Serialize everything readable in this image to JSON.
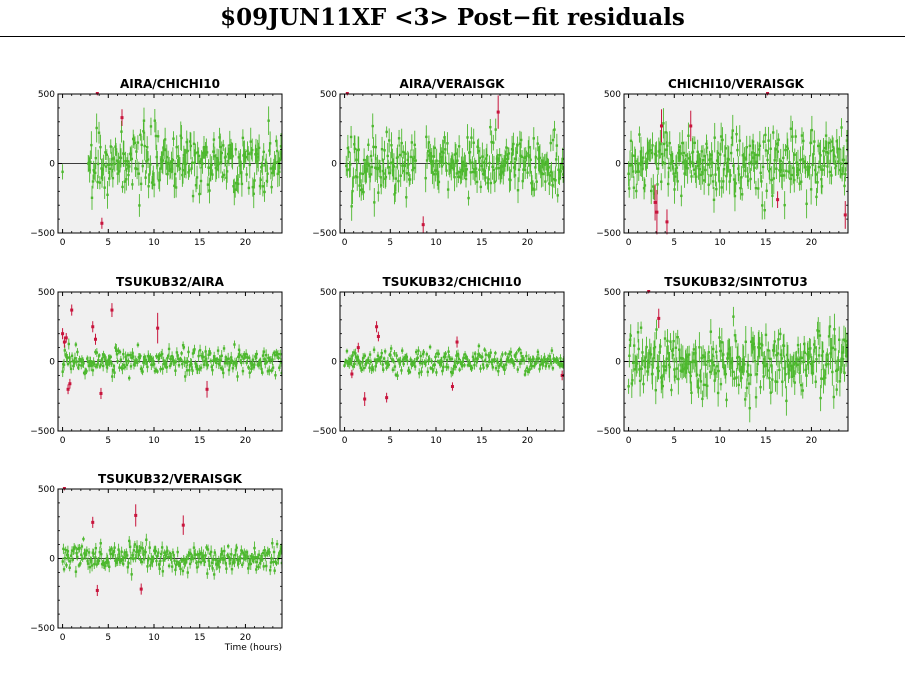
{
  "title": "$09JUN11XF <3> Post−fit residuals",
  "colors": {
    "background": "#ffffff",
    "plot_background": "#f0f0f0",
    "good_points": "#4db82e",
    "outlier_points": "#c8143c",
    "axis": "#000000"
  },
  "chart_data": [
    {
      "type": "scatter",
      "title": "AIRA/CHICHI10",
      "xlim": [
        -0.5,
        24
      ],
      "ylim": [
        -500,
        500
      ],
      "xticks": [
        0,
        5,
        10,
        15,
        20
      ],
      "yticks": [
        -500,
        0,
        500
      ],
      "xlabel": "",
      "grid": false,
      "noise_sigma": 110,
      "good_range": [
        2.8,
        24
      ],
      "good_extra": [
        [
          0,
          -60
        ]
      ],
      "outliers": [
        [
          3.8,
          510,
          20
        ],
        [
          4.3,
          -430,
          40
        ],
        [
          6.5,
          330,
          60
        ]
      ]
    },
    {
      "type": "scatter",
      "title": "AIRA/VERAISGK",
      "xlim": [
        -0.5,
        24
      ],
      "ylim": [
        -500,
        500
      ],
      "xticks": [
        0,
        5,
        10,
        15,
        20
      ],
      "yticks": [
        -500,
        0,
        500
      ],
      "xlabel": "",
      "grid": false,
      "noise_sigma": 110,
      "good_range": [
        0.2,
        24
      ],
      "good_gap": [
        7.8,
        8.8
      ],
      "outliers": [
        [
          0.3,
          510,
          20
        ],
        [
          8.6,
          -440,
          60
        ],
        [
          16.8,
          370,
          120
        ]
      ]
    },
    {
      "type": "scatter",
      "title": "CHICHI10/VERAISGK",
      "xlim": [
        -0.5,
        24
      ],
      "ylim": [
        -500,
        500
      ],
      "xticks": [
        0,
        5,
        10,
        15,
        20
      ],
      "yticks": [
        -500,
        0,
        500
      ],
      "xlabel": "",
      "grid": false,
      "noise_sigma": 120,
      "good_range": [
        0,
        24
      ],
      "outliers": [
        [
          2.9,
          -280,
          130
        ],
        [
          3.1,
          -350,
          160
        ],
        [
          3.6,
          270,
          120
        ],
        [
          4.2,
          -420,
          90
        ],
        [
          6.8,
          270,
          110
        ],
        [
          15.2,
          510,
          20
        ],
        [
          16.3,
          -260,
          60
        ],
        [
          23.7,
          -370,
          100
        ]
      ]
    },
    {
      "type": "scatter",
      "title": "TSUKUB32/AIRA",
      "xlim": [
        -0.5,
        24
      ],
      "ylim": [
        -500,
        500
      ],
      "xticks": [
        0,
        5,
        10,
        15,
        20
      ],
      "yticks": [
        -500,
        0,
        500
      ],
      "xlabel": "",
      "grid": false,
      "noise_sigma": 45,
      "good_range": [
        0,
        24
      ],
      "outliers": [
        [
          0,
          200,
          40
        ],
        [
          0.2,
          140,
          40
        ],
        [
          0.4,
          170,
          35
        ],
        [
          0.6,
          -200,
          35
        ],
        [
          0.8,
          -160,
          35
        ],
        [
          1,
          370,
          40
        ],
        [
          3.3,
          250,
          40
        ],
        [
          3.6,
          160,
          40
        ],
        [
          4.2,
          -230,
          40
        ],
        [
          5.4,
          370,
          50
        ],
        [
          10.4,
          240,
          110
        ],
        [
          15.8,
          -200,
          60
        ]
      ]
    },
    {
      "type": "scatter",
      "title": "TSUKUB32/CHICHI10",
      "xlim": [
        -0.5,
        24
      ],
      "ylim": [
        -500,
        500
      ],
      "xticks": [
        0,
        5,
        10,
        15,
        20
      ],
      "yticks": [
        -500,
        0,
        500
      ],
      "xlabel": "",
      "grid": false,
      "noise_sigma": 40,
      "good_range": [
        0,
        24
      ],
      "outliers": [
        [
          0.8,
          -90,
          30
        ],
        [
          1.5,
          100,
          35
        ],
        [
          2.2,
          -270,
          50
        ],
        [
          3.5,
          250,
          40
        ],
        [
          3.7,
          180,
          35
        ],
        [
          4.6,
          -260,
          35
        ],
        [
          11.8,
          -180,
          30
        ],
        [
          12.3,
          140,
          40
        ],
        [
          23.8,
          -100,
          35
        ]
      ]
    },
    {
      "type": "scatter",
      "title": "TSUKUB32/SINTOTU3",
      "xlim": [
        -0.5,
        24
      ],
      "ylim": [
        -500,
        500
      ],
      "xticks": [
        0,
        5,
        10,
        15,
        20
      ],
      "yticks": [
        -500,
        0,
        500
      ],
      "xlabel": "",
      "grid": false,
      "noise_sigma": 120,
      "good_range": [
        0,
        24
      ],
      "outliers": [
        [
          2.2,
          510,
          20
        ],
        [
          3.3,
          310,
          70
        ]
      ]
    },
    {
      "type": "scatter",
      "title": "TSUKUB32/VERAISGK",
      "xlim": [
        -0.5,
        24
      ],
      "ylim": [
        -500,
        500
      ],
      "xticks": [
        0,
        5,
        10,
        15,
        20
      ],
      "yticks": [
        -500,
        0,
        500
      ],
      "xlabel": "Time (hours)",
      "grid": false,
      "noise_sigma": 50,
      "good_range": [
        0,
        24
      ],
      "outliers": [
        [
          0.2,
          510,
          20
        ],
        [
          3.3,
          260,
          40
        ],
        [
          3.8,
          -230,
          40
        ],
        [
          8,
          310,
          80
        ],
        [
          8.6,
          -220,
          40
        ],
        [
          13.2,
          240,
          70
        ]
      ]
    }
  ]
}
